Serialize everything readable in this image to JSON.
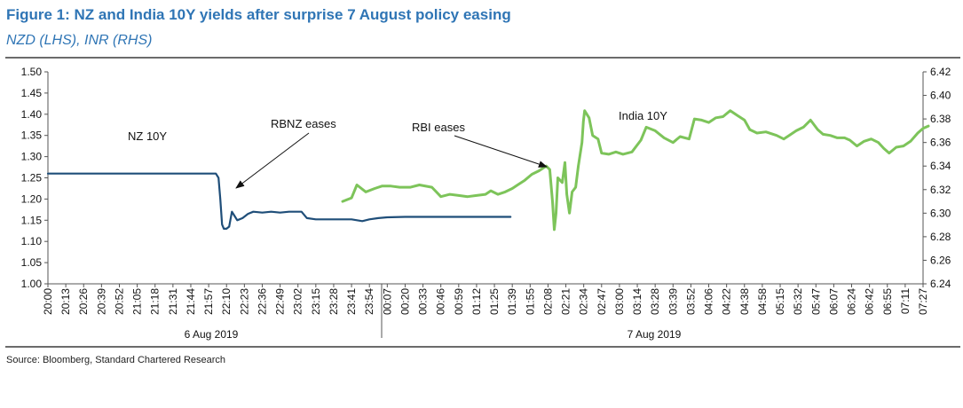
{
  "header": {
    "title": "Figure 1: NZ and India 10Y yields after surprise 7 August policy easing",
    "subtitle": "NZD (LHS), INR (RHS)"
  },
  "footer": {
    "source": "Source: Bloomberg, Standard Chartered Research"
  },
  "chart_data": {
    "type": "line",
    "title": "Figure 1: NZ and India 10Y yields after surprise 7 August policy easing",
    "subtitle": "NZD (LHS), INR (RHS)",
    "x_tick_labels": [
      "20:00",
      "20:13",
      "20:26",
      "20:39",
      "20:52",
      "21:05",
      "21:18",
      "21:31",
      "21:44",
      "21:57",
      "22:10",
      "22:23",
      "22:36",
      "22:49",
      "23:02",
      "23:15",
      "23:28",
      "23:41",
      "23:54",
      "00:07",
      "00:20",
      "00:33",
      "00:46",
      "00:59",
      "01:12",
      "01:25",
      "01:39",
      "01:55",
      "02:08",
      "02:21",
      "02:34",
      "02:47",
      "03:00",
      "03:14",
      "03:28",
      "03:39",
      "03:52",
      "04:06",
      "04:22",
      "04:38",
      "04:58",
      "05:15",
      "05:32",
      "05:47",
      "06:07",
      "06:24",
      "06:42",
      "06:55",
      "07:11",
      "07:27"
    ],
    "date_labels": [
      "6 Aug 2019",
      "7 Aug 2019"
    ],
    "y_left": {
      "min": 1.0,
      "max": 1.5,
      "ticks": [
        "1.00",
        "1.05",
        "1.10",
        "1.15",
        "1.20",
        "1.25",
        "1.30",
        "1.35",
        "1.40",
        "1.45",
        "1.50"
      ]
    },
    "y_right": {
      "min": 6.24,
      "max": 6.42,
      "ticks": [
        "6.24",
        "6.26",
        "6.28",
        "6.30",
        "6.32",
        "6.34",
        "6.36",
        "6.38",
        "6.40",
        "6.42"
      ]
    },
    "grid": false,
    "series": [
      {
        "name": "NZ 10Y",
        "axis": "left",
        "color": "#1f4e79",
        "points": [
          [
            0,
            1.26
          ],
          [
            4,
            1.26
          ],
          [
            8,
            1.26
          ],
          [
            9.4,
            1.26
          ],
          [
            9.55,
            1.25
          ],
          [
            9.65,
            1.2
          ],
          [
            9.75,
            1.14
          ],
          [
            9.85,
            1.13
          ],
          [
            10.0,
            1.13
          ],
          [
            10.15,
            1.135
          ],
          [
            10.3,
            1.17
          ],
          [
            10.45,
            1.16
          ],
          [
            10.6,
            1.15
          ],
          [
            10.9,
            1.155
          ],
          [
            11.2,
            1.165
          ],
          [
            11.5,
            1.17
          ],
          [
            12.0,
            1.168
          ],
          [
            12.5,
            1.17
          ],
          [
            13.0,
            1.168
          ],
          [
            13.5,
            1.17
          ],
          [
            14.2,
            1.17
          ],
          [
            14.5,
            1.155
          ],
          [
            15.0,
            1.152
          ],
          [
            16.0,
            1.152
          ],
          [
            17.0,
            1.152
          ],
          [
            17.6,
            1.148
          ],
          [
            18.0,
            1.152
          ],
          [
            18.5,
            1.155
          ],
          [
            19.0,
            1.157
          ],
          [
            20.0,
            1.158
          ],
          [
            21.0,
            1.158
          ],
          [
            22.0,
            1.158
          ],
          [
            23.0,
            1.158
          ],
          [
            24.0,
            1.158
          ],
          [
            25.0,
            1.158
          ],
          [
            25.9,
            1.158
          ]
        ]
      },
      {
        "name": "India 10Y",
        "axis": "right",
        "color": "#7dc45a",
        "points": [
          [
            16.5,
            6.31
          ],
          [
            17.0,
            6.313
          ],
          [
            17.3,
            6.324
          ],
          [
            17.8,
            6.318
          ],
          [
            18.3,
            6.321
          ],
          [
            18.7,
            6.323
          ],
          [
            19.2,
            6.323
          ],
          [
            19.7,
            6.322
          ],
          [
            20.3,
            6.322
          ],
          [
            20.8,
            6.324
          ],
          [
            21.5,
            6.322
          ],
          [
            22.0,
            6.314
          ],
          [
            22.5,
            6.316
          ],
          [
            23.0,
            6.315
          ],
          [
            23.5,
            6.314
          ],
          [
            24.0,
            6.315
          ],
          [
            24.5,
            6.316
          ],
          [
            24.8,
            6.319
          ],
          [
            25.2,
            6.316
          ],
          [
            25.6,
            6.318
          ],
          [
            26.0,
            6.321
          ],
          [
            26.3,
            6.324
          ],
          [
            26.7,
            6.328
          ],
          [
            27.1,
            6.333
          ],
          [
            27.5,
            6.336
          ],
          [
            27.9,
            6.34
          ],
          [
            28.1,
            6.337
          ],
          [
            28.25,
            6.31
          ],
          [
            28.35,
            6.286
          ],
          [
            28.45,
            6.3
          ],
          [
            28.55,
            6.33
          ],
          [
            28.8,
            6.326
          ],
          [
            28.95,
            6.343
          ],
          [
            29.05,
            6.316
          ],
          [
            29.2,
            6.3
          ],
          [
            29.35,
            6.318
          ],
          [
            29.55,
            6.322
          ],
          [
            29.7,
            6.34
          ],
          [
            29.9,
            6.36
          ],
          [
            29.98,
            6.378
          ],
          [
            30.05,
            6.387
          ],
          [
            30.3,
            6.381
          ],
          [
            30.5,
            6.366
          ],
          [
            30.8,
            6.363
          ],
          [
            31.0,
            6.351
          ],
          [
            31.4,
            6.35
          ],
          [
            31.8,
            6.352
          ],
          [
            32.2,
            6.35
          ],
          [
            32.7,
            6.352
          ],
          [
            33.2,
            6.362
          ],
          [
            33.5,
            6.373
          ],
          [
            34.0,
            6.37
          ],
          [
            34.5,
            6.364
          ],
          [
            35.0,
            6.36
          ],
          [
            35.4,
            6.365
          ],
          [
            35.9,
            6.363
          ],
          [
            36.2,
            6.38
          ],
          [
            36.6,
            6.379
          ],
          [
            37.0,
            6.377
          ],
          [
            37.4,
            6.381
          ],
          [
            37.8,
            6.382
          ],
          [
            38.2,
            6.387
          ],
          [
            38.6,
            6.383
          ],
          [
            39.0,
            6.379
          ],
          [
            39.3,
            6.371
          ],
          [
            39.7,
            6.368
          ],
          [
            40.2,
            6.369
          ],
          [
            40.8,
            6.366
          ],
          [
            41.2,
            6.363
          ],
          [
            41.5,
            6.366
          ],
          [
            41.9,
            6.37
          ],
          [
            42.3,
            6.373
          ],
          [
            42.7,
            6.379
          ],
          [
            43.1,
            6.371
          ],
          [
            43.4,
            6.367
          ],
          [
            43.8,
            6.366
          ],
          [
            44.2,
            6.364
          ],
          [
            44.6,
            6.364
          ],
          [
            44.9,
            6.362
          ],
          [
            45.3,
            6.357
          ],
          [
            45.7,
            6.361
          ],
          [
            46.1,
            6.363
          ],
          [
            46.5,
            6.36
          ],
          [
            46.8,
            6.355
          ],
          [
            47.1,
            6.351
          ],
          [
            47.5,
            6.356
          ],
          [
            47.9,
            6.357
          ],
          [
            48.3,
            6.361
          ],
          [
            48.7,
            6.368
          ],
          [
            49.0,
            6.372
          ],
          [
            49.3,
            6.374
          ]
        ]
      }
    ],
    "annotations": [
      {
        "text": "RBNZ eases"
      },
      {
        "text": "RBI eases"
      },
      {
        "text": "NZ 10Y"
      },
      {
        "text": "India 10Y"
      }
    ]
  }
}
